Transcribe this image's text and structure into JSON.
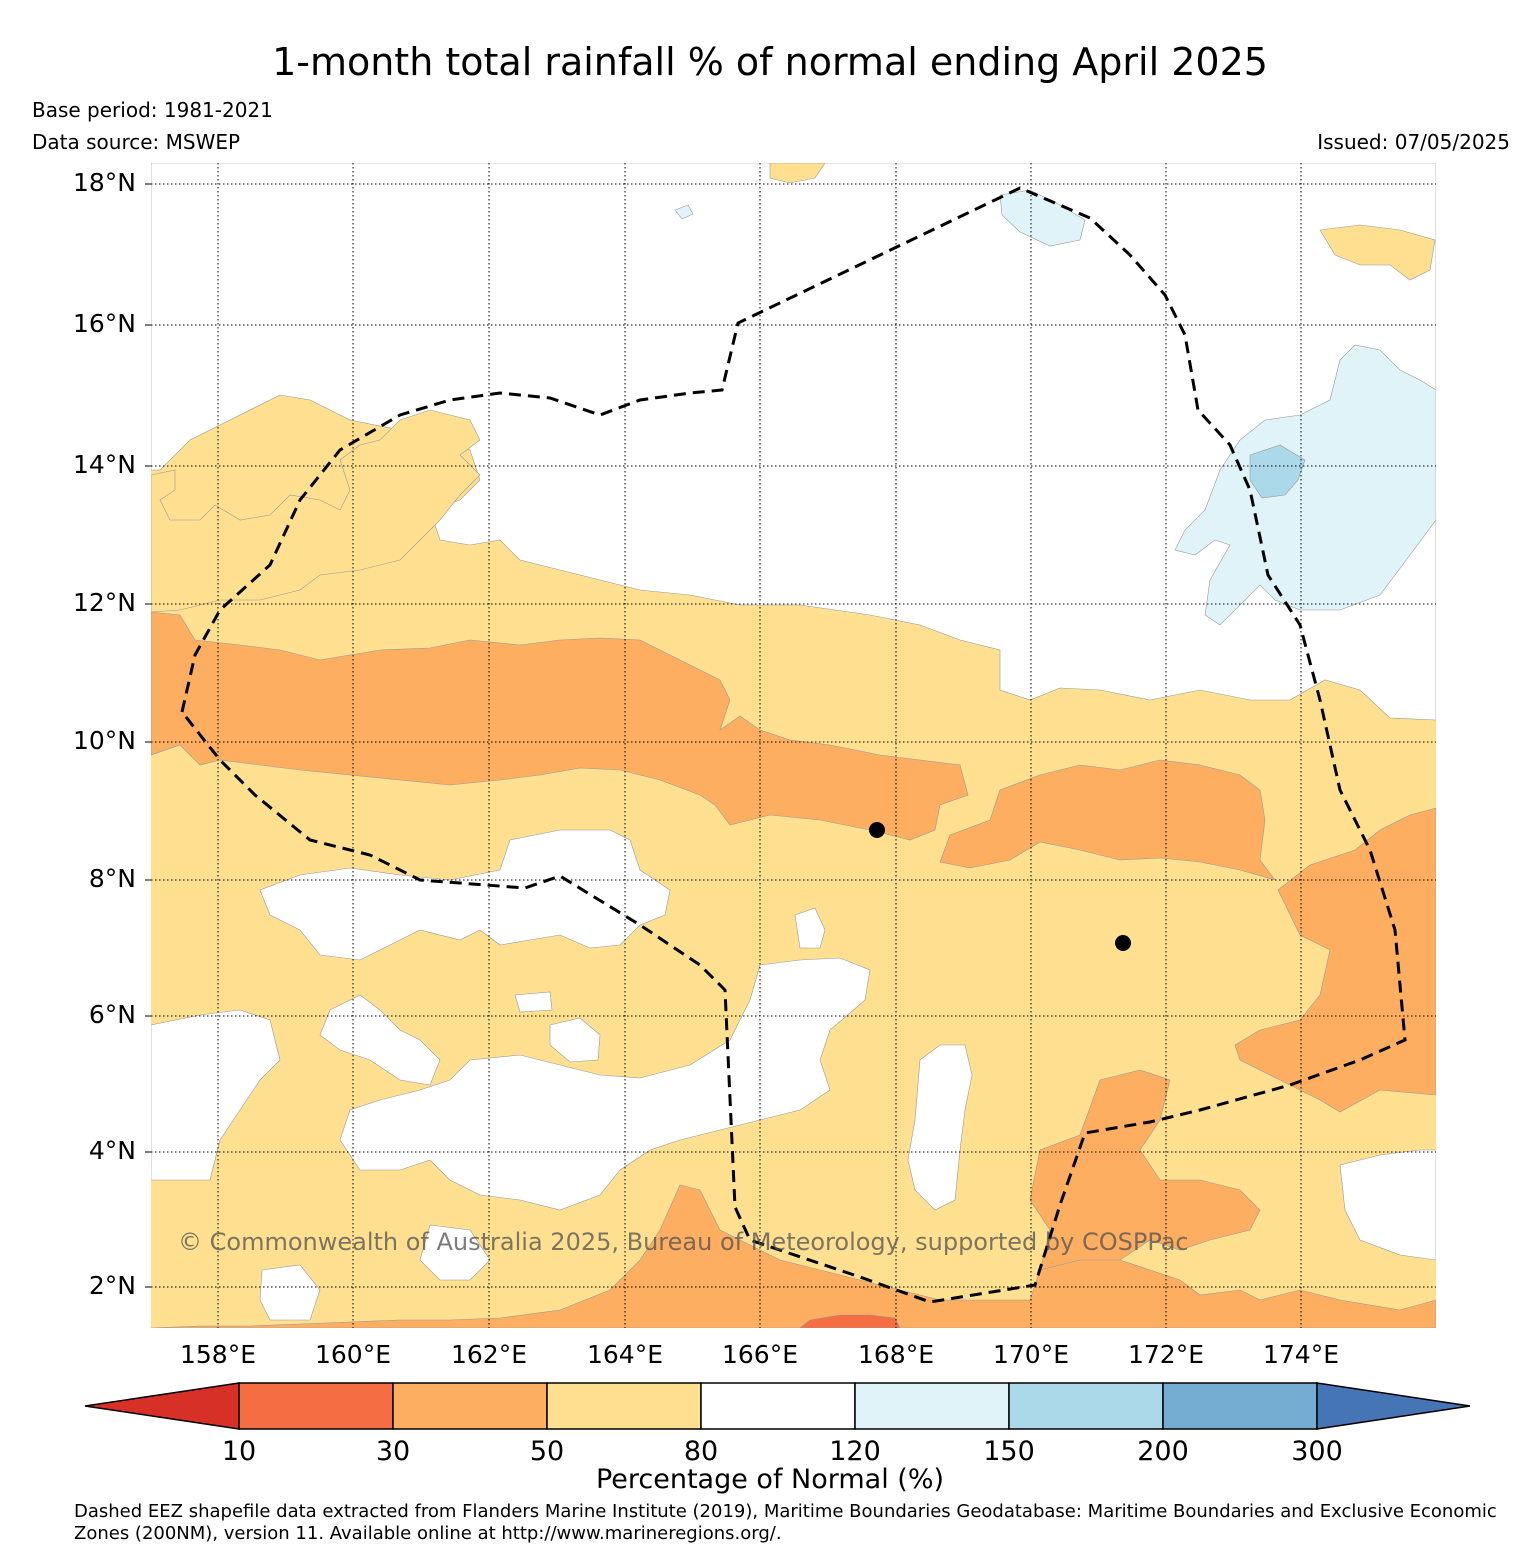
{
  "title": "1-month total rainfall % of normal ending April 2025",
  "base_period": "Base period: 1981-2021",
  "data_source": "Data source: MSWEP",
  "issued": "Issued: 07/05/2025",
  "copyright": "© Commonwealth of Australia 2025, Bureau of Meteorology, supported by COSPPac",
  "latitude_labels": [
    "18°N",
    "16°N",
    "14°N",
    "12°N",
    "10°N",
    "8°N",
    "6°N",
    "4°N",
    "2°N"
  ],
  "longitude_labels": [
    "158°E",
    "160°E",
    "162°E",
    "164°E",
    "166°E",
    "168°E",
    "170°E",
    "172°E",
    "174°E"
  ],
  "colorbar": {
    "title": "Percentage of Normal (%)",
    "tick_labels": [
      "10",
      "30",
      "50",
      "80",
      "120",
      "150",
      "200",
      "300"
    ],
    "colors": [
      "#d73027",
      "#f46d43",
      "#fdae61",
      "#fee090",
      "#ffffff",
      "#e0f3f8",
      "#abd9e9",
      "#74add1",
      "#4575b4"
    ]
  },
  "footnote": "Dashed EEZ shapefile data extracted from Flanders Marine Institute (2019), Maritime Boundaries Geodatabase: Maritime Boundaries and Exclusive Economic Zones (200NM), version 11. Available online at http://www.marineregions.org/."
}
